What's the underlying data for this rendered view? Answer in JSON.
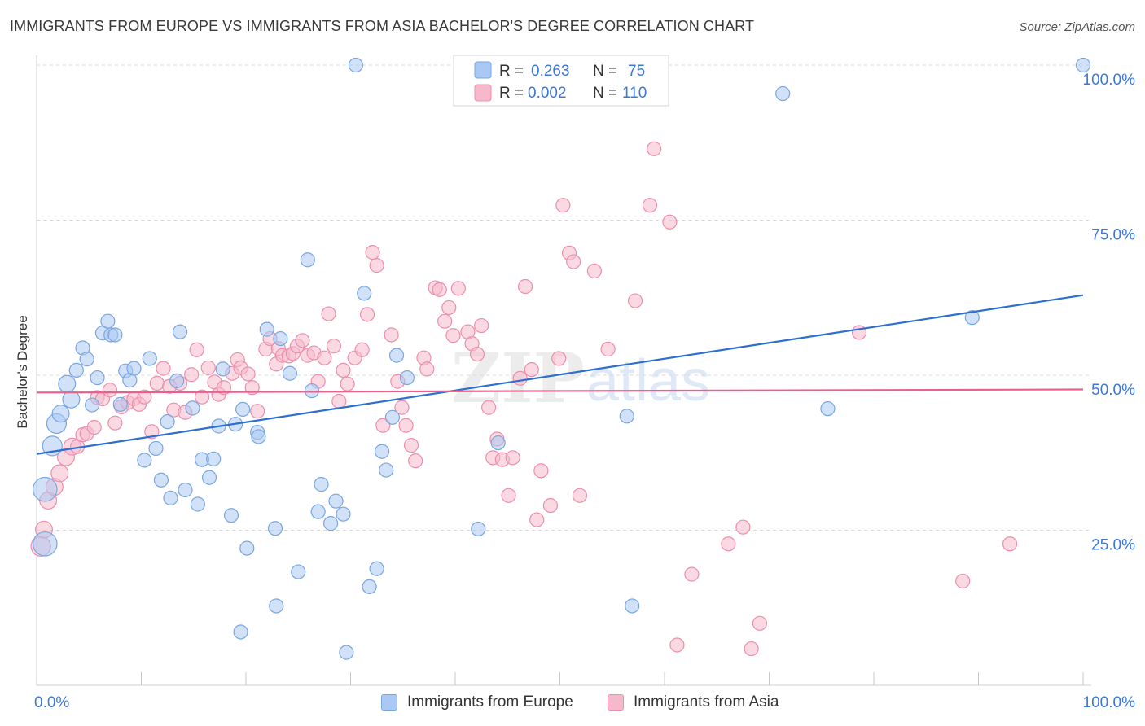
{
  "title": "IMMIGRANTS FROM EUROPE VS IMMIGRANTS FROM ASIA BACHELOR'S DEGREE CORRELATION CHART",
  "source": "Source: ZipAtlas.com",
  "watermark": {
    "zip": "ZIP",
    "atlas": "atlas"
  },
  "colors": {
    "europe_fill": "#a9c8f3",
    "europe_stroke": "#7aa6e0",
    "europe_line": "#2c6fd1",
    "asia_fill": "#f6b9cc",
    "asia_stroke": "#ec8fac",
    "asia_line": "#e8608c",
    "tick_label": "#3c78d8",
    "grid": "#d8d8d8"
  },
  "legend": {
    "europe": {
      "r_label": "R =",
      "r_value": "0.263",
      "n_label": "N =",
      "n_value": "75"
    },
    "asia": {
      "r_label": "R =",
      "r_value": "0.002",
      "n_label": "N =",
      "n_value": "110"
    }
  },
  "chart_data": {
    "type": "scatter",
    "title": "IMMIGRANTS FROM EUROPE VS IMMIGRANTS FROM ASIA BACHELOR'S DEGREE CORRELATION CHART",
    "xlabel": "",
    "ylabel": "Bachelor's Degree",
    "xlim": [
      0,
      100
    ],
    "ylim": [
      0,
      100
    ],
    "x_tick_labels": {
      "left": "0.0%",
      "right": "100.0%"
    },
    "y_ticks": [
      25,
      50,
      75,
      100
    ],
    "y_tick_labels": [
      "25.0%",
      "50.0%",
      "75.0%",
      "100.0%"
    ],
    "grid": true,
    "legend_position": "top-center",
    "series": [
      {
        "name": "Immigrants from Europe",
        "r": 0.263,
        "n": 75,
        "trend": {
          "x": [
            0,
            100
          ],
          "y": [
            37.3,
            62.9
          ]
        },
        "points": [
          [
            0.8,
            22.8,
            3
          ],
          [
            0.8,
            31.6,
            3
          ],
          [
            1.5,
            38.6,
            2
          ],
          [
            1.9,
            42.2,
            2
          ],
          [
            2.3,
            43.8,
            1.5
          ],
          [
            2.9,
            48.6,
            1.5
          ],
          [
            3.3,
            46.1,
            1.5
          ],
          [
            3.8,
            50.8,
            1
          ],
          [
            4.4,
            54.4,
            1
          ],
          [
            4.8,
            52.6,
            1
          ],
          [
            5.3,
            45.2,
            1
          ],
          [
            5.8,
            49.6,
            1
          ],
          [
            6.3,
            56.8,
            1
          ],
          [
            6.8,
            58.7,
            1
          ],
          [
            7.1,
            56.5,
            1
          ],
          [
            7.5,
            56.5,
            1
          ],
          [
            8.0,
            45.3,
            1
          ],
          [
            8.5,
            50.7,
            1
          ],
          [
            8.9,
            49.2,
            1
          ],
          [
            9.3,
            51.1,
            1
          ],
          [
            10.3,
            36.3,
            1
          ],
          [
            10.8,
            52.7,
            1
          ],
          [
            11.4,
            38.2,
            1
          ],
          [
            11.9,
            33.1,
            1
          ],
          [
            12.5,
            42.5,
            1
          ],
          [
            12.8,
            30.2,
            1
          ],
          [
            13.4,
            49.1,
            1
          ],
          [
            13.7,
            57.0,
            1
          ],
          [
            14.2,
            31.5,
            1
          ],
          [
            14.9,
            44.7,
            1
          ],
          [
            15.4,
            29.2,
            1
          ],
          [
            15.8,
            36.4,
            1
          ],
          [
            16.5,
            33.5,
            1
          ],
          [
            16.9,
            36.5,
            1
          ],
          [
            17.4,
            41.8,
            1
          ],
          [
            17.8,
            51.0,
            1
          ],
          [
            18.6,
            27.4,
            1
          ],
          [
            19.0,
            42.1,
            1
          ],
          [
            19.5,
            8.6,
            1
          ],
          [
            19.7,
            44.5,
            1
          ],
          [
            20.1,
            22.1,
            1
          ],
          [
            21.1,
            40.8,
            1
          ],
          [
            21.2,
            40.1,
            1
          ],
          [
            22.0,
            57.4,
            1
          ],
          [
            22.8,
            25.3,
            1
          ],
          [
            22.9,
            12.8,
            1
          ],
          [
            23.3,
            55.9,
            1
          ],
          [
            24.2,
            50.3,
            1
          ],
          [
            25.0,
            18.3,
            1
          ],
          [
            25.9,
            68.6,
            1
          ],
          [
            26.3,
            47.5,
            1
          ],
          [
            26.9,
            28.0,
            1
          ],
          [
            27.2,
            32.4,
            1
          ],
          [
            28.1,
            26.1,
            1
          ],
          [
            28.6,
            29.7,
            1
          ],
          [
            29.3,
            27.6,
            1
          ],
          [
            29.6,
            5.3,
            1
          ],
          [
            30.5,
            100.0,
            1
          ],
          [
            31.3,
            63.2,
            1
          ],
          [
            31.8,
            15.9,
            1
          ],
          [
            32.5,
            18.8,
            1
          ],
          [
            33.0,
            37.7,
            1
          ],
          [
            33.4,
            34.7,
            1
          ],
          [
            34.0,
            43.2,
            1
          ],
          [
            34.4,
            53.2,
            1
          ],
          [
            35.4,
            49.6,
            1
          ],
          [
            42.2,
            25.2,
            1
          ],
          [
            44.1,
            39.1,
            1
          ],
          [
            56.4,
            43.4,
            1
          ],
          [
            56.9,
            12.8,
            1
          ],
          [
            71.3,
            95.4,
            1
          ],
          [
            75.6,
            44.6,
            1
          ],
          [
            89.4,
            59.3,
            1
          ],
          [
            100.0,
            100.0,
            1
          ]
        ]
      },
      {
        "name": "Immigrants from Asia",
        "r": 0.002,
        "n": 110,
        "trend": {
          "x": [
            0,
            100
          ],
          "y": [
            47.2,
            47.7
          ]
        },
        "points": [
          [
            0.4,
            22.4,
            2
          ],
          [
            0.7,
            25.1,
            1.5
          ],
          [
            1.1,
            29.8,
            1.5
          ],
          [
            1.7,
            32.0,
            1.5
          ],
          [
            2.2,
            34.2,
            1.5
          ],
          [
            2.8,
            36.8,
            1.5
          ],
          [
            3.4,
            38.5,
            1.5
          ],
          [
            3.9,
            38.5,
            1
          ],
          [
            4.4,
            40.4,
            1
          ],
          [
            4.8,
            40.6,
            1
          ],
          [
            5.5,
            41.6,
            1
          ],
          [
            5.8,
            46.4,
            1
          ],
          [
            6.3,
            46.2,
            1
          ],
          [
            7.0,
            47.6,
            1
          ],
          [
            7.5,
            42.3,
            1
          ],
          [
            8.1,
            44.9,
            1
          ],
          [
            8.7,
            45.6,
            1
          ],
          [
            9.3,
            46.2,
            1
          ],
          [
            9.8,
            45.3,
            1
          ],
          [
            10.3,
            46.5,
            1
          ],
          [
            11.0,
            40.9,
            1
          ],
          [
            11.5,
            48.7,
            1
          ],
          [
            12.1,
            51.1,
            1
          ],
          [
            12.7,
            48.2,
            1
          ],
          [
            13.1,
            44.4,
            1
          ],
          [
            13.7,
            48.7,
            1
          ],
          [
            14.2,
            44.0,
            1
          ],
          [
            14.8,
            50.1,
            1
          ],
          [
            15.3,
            54.1,
            1
          ],
          [
            15.8,
            46.5,
            1
          ],
          [
            16.4,
            51.2,
            1
          ],
          [
            17.0,
            48.9,
            1
          ],
          [
            17.4,
            46.9,
            1
          ],
          [
            17.9,
            48.0,
            1
          ],
          [
            18.7,
            50.3,
            1
          ],
          [
            19.2,
            52.5,
            1
          ],
          [
            19.5,
            51.2,
            1
          ],
          [
            20.2,
            50.2,
            1
          ],
          [
            20.6,
            48.0,
            1
          ],
          [
            21.1,
            44.2,
            1
          ],
          [
            21.9,
            54.2,
            1
          ],
          [
            22.3,
            55.9,
            1
          ],
          [
            22.9,
            51.8,
            1
          ],
          [
            23.1,
            54.3,
            1
          ],
          [
            23.5,
            53.2,
            1
          ],
          [
            24.1,
            53.1,
            1
          ],
          [
            24.5,
            53.5,
            1
          ],
          [
            24.9,
            54.7,
            1
          ],
          [
            25.4,
            55.6,
            1
          ],
          [
            25.9,
            53.2,
            1
          ],
          [
            26.5,
            53.6,
            1
          ],
          [
            26.9,
            49.0,
            1
          ],
          [
            27.5,
            52.8,
            1
          ],
          [
            27.9,
            59.9,
            1
          ],
          [
            28.4,
            54.7,
            1
          ],
          [
            28.9,
            45.8,
            1
          ],
          [
            29.3,
            50.8,
            1
          ],
          [
            29.7,
            48.6,
            1
          ],
          [
            30.4,
            52.8,
            1
          ],
          [
            31.1,
            54.1,
            1
          ],
          [
            31.6,
            59.8,
            1
          ],
          [
            32.1,
            69.8,
            1
          ],
          [
            32.5,
            67.7,
            1
          ],
          [
            33.1,
            41.9,
            1
          ],
          [
            33.9,
            56.5,
            1
          ],
          [
            34.5,
            49.0,
            1
          ],
          [
            34.9,
            44.8,
            1
          ],
          [
            35.3,
            41.9,
            1
          ],
          [
            35.8,
            38.7,
            1
          ],
          [
            36.2,
            36.2,
            1
          ],
          [
            37.0,
            52.8,
            1
          ],
          [
            37.3,
            51.0,
            1
          ],
          [
            38.1,
            64.1,
            1
          ],
          [
            38.5,
            63.8,
            1
          ],
          [
            39.0,
            58.7,
            1
          ],
          [
            39.4,
            60.9,
            1
          ],
          [
            39.8,
            56.4,
            1
          ],
          [
            40.3,
            64.0,
            1
          ],
          [
            41.2,
            57.0,
            1
          ],
          [
            41.6,
            55.1,
            1
          ],
          [
            42.1,
            53.4,
            1
          ],
          [
            42.5,
            58.0,
            1
          ],
          [
            43.2,
            44.8,
            1
          ],
          [
            43.6,
            36.7,
            1
          ],
          [
            44.0,
            39.7,
            1
          ],
          [
            44.5,
            36.4,
            1
          ],
          [
            45.1,
            30.6,
            1
          ],
          [
            45.5,
            36.7,
            1
          ],
          [
            46.2,
            49.5,
            1
          ],
          [
            46.7,
            64.3,
            1
          ],
          [
            47.3,
            50.9,
            1
          ],
          [
            47.8,
            26.7,
            1
          ],
          [
            48.2,
            34.6,
            1
          ],
          [
            49.1,
            29.0,
            1
          ],
          [
            49.9,
            52.7,
            1
          ],
          [
            50.3,
            77.4,
            1
          ],
          [
            50.9,
            69.7,
            1
          ],
          [
            51.3,
            68.3,
            1
          ],
          [
            51.9,
            30.6,
            1
          ],
          [
            53.3,
            66.8,
            1
          ],
          [
            54.6,
            54.2,
            1
          ],
          [
            57.2,
            62.0,
            1
          ],
          [
            58.6,
            77.4,
            1
          ],
          [
            59.0,
            86.5,
            1
          ],
          [
            60.5,
            74.7,
            1
          ],
          [
            61.2,
            6.5,
            1
          ],
          [
            62.6,
            17.9,
            1
          ],
          [
            66.1,
            22.8,
            1
          ],
          [
            67.5,
            25.5,
            1
          ],
          [
            68.3,
            5.9,
            1
          ],
          [
            69.1,
            10.0,
            1
          ],
          [
            78.6,
            56.9,
            1
          ],
          [
            88.5,
            16.8,
            1
          ],
          [
            93.0,
            22.8,
            1
          ]
        ]
      }
    ]
  },
  "bottom_legend": {
    "europe": "Immigrants from Europe",
    "asia": "Immigrants from Asia"
  }
}
